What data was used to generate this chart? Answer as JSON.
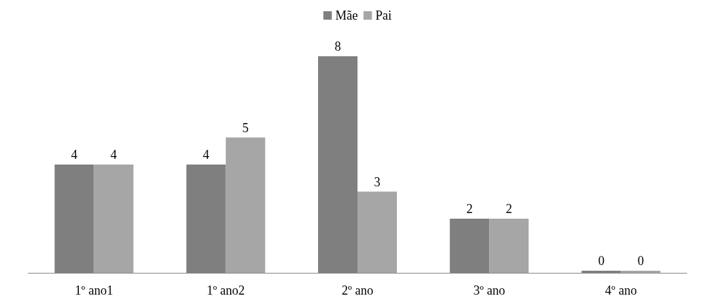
{
  "chart_data": {
    "type": "bar",
    "categories": [
      "1º ano1",
      "1º ano2",
      "2º ano",
      "3º ano",
      "4º ano"
    ],
    "series": [
      {
        "name": "Mãe",
        "color": "#7f7f7f",
        "values": [
          4,
          4,
          8,
          2,
          0
        ]
      },
      {
        "name": "Pai",
        "color": "#a6a6a6",
        "values": [
          4,
          5,
          3,
          2,
          0
        ]
      }
    ],
    "data_labels": true,
    "legend": "top"
  }
}
